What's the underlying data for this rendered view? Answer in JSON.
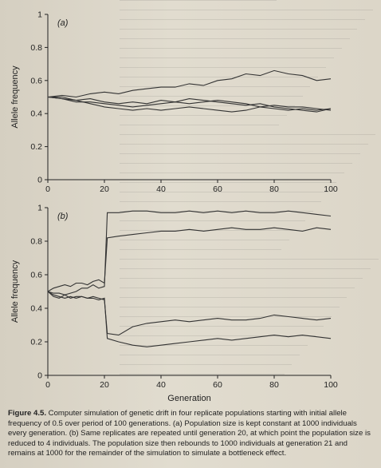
{
  "chart_data": [
    {
      "type": "line",
      "panel_label": "(a)",
      "xlabel": "",
      "ylabel": "Allele frequency",
      "xlim": [
        0,
        100
      ],
      "ylim": [
        0,
        1
      ],
      "xticks": [
        "0",
        "20",
        "40",
        "60",
        "80",
        "100"
      ],
      "yticks": [
        "0",
        "0.2",
        "0.4",
        "0.6",
        "0.8",
        "1"
      ],
      "x": [
        0,
        5,
        10,
        15,
        20,
        25,
        30,
        35,
        40,
        45,
        50,
        55,
        60,
        65,
        70,
        75,
        80,
        85,
        90,
        95,
        100
      ],
      "series": [
        {
          "values": [
            0.5,
            0.51,
            0.5,
            0.52,
            0.53,
            0.52,
            0.54,
            0.55,
            0.56,
            0.56,
            0.58,
            0.57,
            0.6,
            0.61,
            0.64,
            0.63,
            0.66,
            0.64,
            0.63,
            0.6,
            0.61
          ]
        },
        {
          "values": [
            0.5,
            0.49,
            0.48,
            0.49,
            0.47,
            0.46,
            0.47,
            0.46,
            0.48,
            0.47,
            0.49,
            0.48,
            0.47,
            0.46,
            0.45,
            0.46,
            0.44,
            0.43,
            0.42,
            0.41,
            0.43
          ]
        },
        {
          "values": [
            0.5,
            0.49,
            0.47,
            0.47,
            0.46,
            0.45,
            0.44,
            0.45,
            0.46,
            0.47,
            0.46,
            0.47,
            0.48,
            0.47,
            0.46,
            0.44,
            0.45,
            0.44,
            0.44,
            0.43,
            0.42
          ]
        },
        {
          "values": [
            0.5,
            0.5,
            0.48,
            0.46,
            0.44,
            0.43,
            0.42,
            0.43,
            0.42,
            0.43,
            0.44,
            0.43,
            0.42,
            0.41,
            0.42,
            0.44,
            0.43,
            0.42,
            0.43,
            0.42,
            0.43
          ]
        }
      ]
    },
    {
      "type": "line",
      "panel_label": "(b)",
      "xlabel": "Generation",
      "ylabel": "Allele frequency",
      "xlim": [
        0,
        100
      ],
      "ylim": [
        0,
        1
      ],
      "xticks": [
        "0",
        "20",
        "40",
        "60",
        "80",
        "100"
      ],
      "yticks": [
        "0",
        "0.2",
        "0.4",
        "0.6",
        "0.8",
        "1"
      ],
      "x": [
        0,
        2,
        4,
        6,
        8,
        10,
        12,
        14,
        16,
        18,
        20,
        21,
        25,
        30,
        35,
        40,
        45,
        50,
        55,
        60,
        65,
        70,
        75,
        80,
        85,
        90,
        95,
        100
      ],
      "series": [
        {
          "values": [
            0.5,
            0.49,
            0.49,
            0.48,
            0.49,
            0.5,
            0.52,
            0.52,
            0.54,
            0.52,
            0.53,
            0.97,
            0.97,
            0.98,
            0.98,
            0.97,
            0.97,
            0.98,
            0.97,
            0.98,
            0.97,
            0.98,
            0.97,
            0.97,
            0.98,
            0.97,
            0.96,
            0.95
          ]
        },
        {
          "values": [
            0.5,
            0.52,
            0.53,
            0.54,
            0.53,
            0.55,
            0.55,
            0.54,
            0.56,
            0.57,
            0.55,
            0.82,
            0.83,
            0.84,
            0.85,
            0.86,
            0.86,
            0.87,
            0.86,
            0.87,
            0.88,
            0.87,
            0.87,
            0.88,
            0.87,
            0.86,
            0.88,
            0.87
          ]
        },
        {
          "values": [
            0.5,
            0.48,
            0.47,
            0.46,
            0.47,
            0.46,
            0.47,
            0.46,
            0.47,
            0.46,
            0.45,
            0.25,
            0.24,
            0.29,
            0.31,
            0.32,
            0.33,
            0.32,
            0.33,
            0.34,
            0.33,
            0.33,
            0.34,
            0.36,
            0.35,
            0.34,
            0.33,
            0.34
          ]
        },
        {
          "values": [
            0.5,
            0.47,
            0.46,
            0.48,
            0.46,
            0.47,
            0.47,
            0.46,
            0.46,
            0.45,
            0.46,
            0.22,
            0.2,
            0.18,
            0.17,
            0.18,
            0.19,
            0.2,
            0.21,
            0.22,
            0.21,
            0.22,
            0.23,
            0.24,
            0.23,
            0.24,
            0.23,
            0.22
          ]
        }
      ]
    }
  ],
  "caption": {
    "figure_number": "Figure 4.5.",
    "text": "Computer simulation of genetic drift in four replicate populations starting with initial allele frequency of 0.5 over period of 100 generations. (a) Population size is kept constant at 1000 individuals every generation. (b) Same replicates are repeated until generation 20, at which point the population size is reduced to 4 individuals. The population size then rebounds to 1000 individuals at generation 21 and remains at 1000 for the remainder of the simulation to simulate a bottleneck effect."
  },
  "colors": {
    "page": "#ddd8cb",
    "ink": "#222222",
    "line": "#333333"
  }
}
